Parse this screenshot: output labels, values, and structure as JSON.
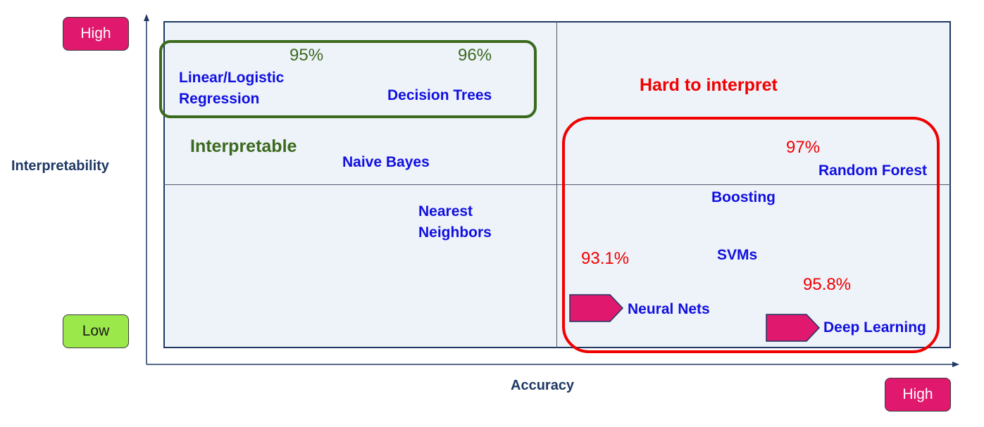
{
  "axes": {
    "y_label": "Interpretability",
    "x_label": "Accuracy",
    "y_high": "High",
    "y_low": "Low",
    "x_high": "High"
  },
  "groups": {
    "interpretable": "Interpretable",
    "hard": "Hard to interpret"
  },
  "algorithms": {
    "linear_line1": "Linear/Logistic",
    "linear_line2": "Regression",
    "decision_trees": "Decision Trees",
    "naive_bayes": "Naive Bayes",
    "nn_line1": "Nearest",
    "nn_line2": "Neighbors",
    "random_forest": "Random Forest",
    "boosting": "Boosting",
    "svms": "SVMs",
    "neural_nets": "Neural Nets",
    "deep_learning": "Deep Learning"
  },
  "accuracies": {
    "linear": "95%",
    "decision_trees": "96%",
    "random_forest": "97%",
    "svms": "93.1%",
    "neural_nets": "95.8%"
  },
  "colors": {
    "quadrant_bg": "#eef2f9",
    "algorithm_text": "#1010e0",
    "interpretable": "#3a6a1e",
    "hard_to_interpret": "#f00000",
    "high_badge": "#e0186e",
    "low_badge": "#9be84a",
    "pointer": "#e0186e"
  },
  "icons": {
    "pointer_1": "pentagon-arrow-icon",
    "pointer_2": "pentagon-arrow-icon"
  }
}
